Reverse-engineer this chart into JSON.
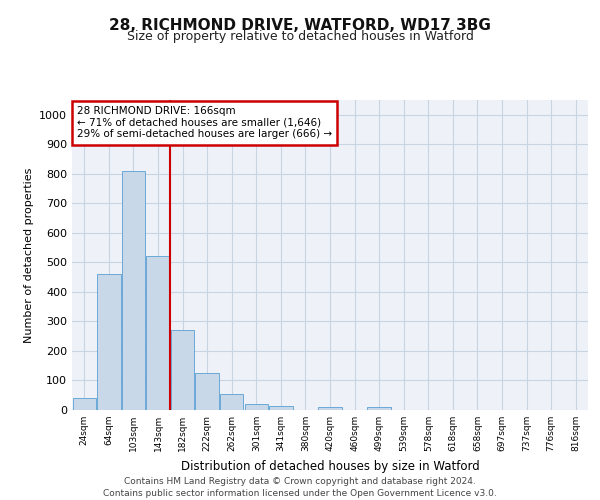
{
  "title_line1": "28, RICHMOND DRIVE, WATFORD, WD17 3BG",
  "title_line2": "Size of property relative to detached houses in Watford",
  "xlabel": "Distribution of detached houses by size in Watford",
  "ylabel": "Number of detached properties",
  "footer_line1": "Contains HM Land Registry data © Crown copyright and database right 2024.",
  "footer_line2": "Contains public sector information licensed under the Open Government Licence v3.0.",
  "categories": [
    "24sqm",
    "64sqm",
    "103sqm",
    "143sqm",
    "182sqm",
    "222sqm",
    "262sqm",
    "301sqm",
    "341sqm",
    "380sqm",
    "420sqm",
    "460sqm",
    "499sqm",
    "539sqm",
    "578sqm",
    "618sqm",
    "658sqm",
    "697sqm",
    "737sqm",
    "776sqm",
    "816sqm"
  ],
  "values": [
    40,
    460,
    810,
    520,
    270,
    125,
    55,
    20,
    12,
    0,
    10,
    0,
    10,
    0,
    0,
    0,
    0,
    0,
    0,
    0,
    0
  ],
  "bar_color": "#c8d8e8",
  "bar_edge_color": "#5a9fd4",
  "grid_color": "#c8d4e4",
  "background_color": "#eef2f8",
  "vline_x": 3.5,
  "vline_color": "#cc0000",
  "annotation_text": "28 RICHMOND DRIVE: 166sqm\n← 71% of detached houses are smaller (1,646)\n29% of semi-detached houses are larger (666) →",
  "annotation_box_facecolor": "#ffffff",
  "annotation_box_edgecolor": "#cc0000",
  "ylim": [
    0,
    1050
  ],
  "yticks": [
    0,
    100,
    200,
    300,
    400,
    500,
    600,
    700,
    800,
    900,
    1000
  ]
}
